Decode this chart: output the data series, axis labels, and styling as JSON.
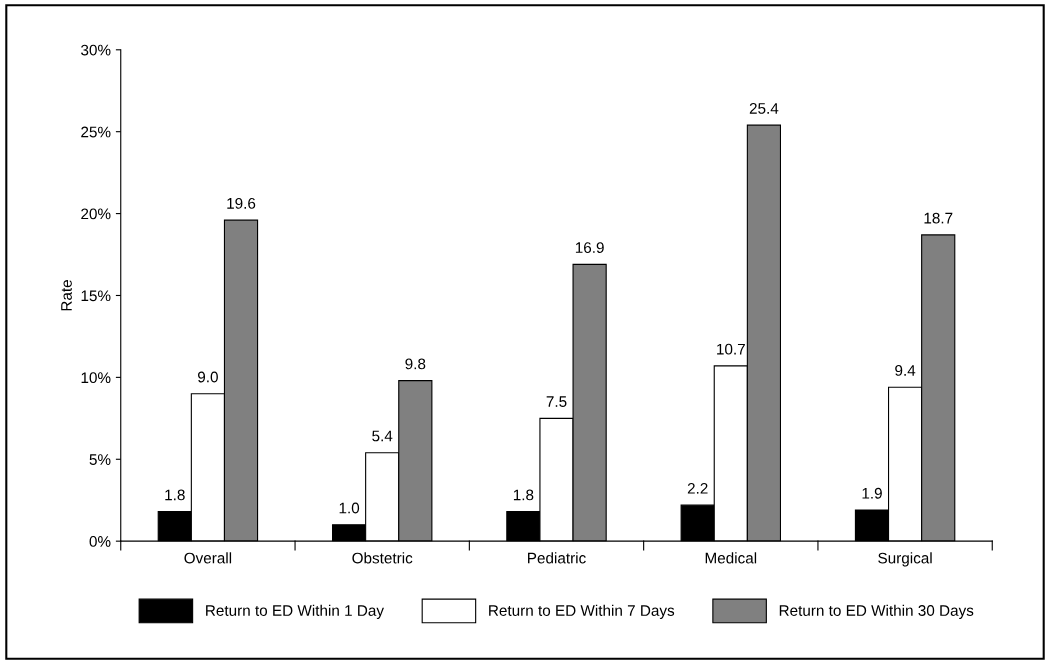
{
  "chart_data": {
    "type": "bar",
    "ylabel": "Rate",
    "categories": [
      "Overall",
      "Obstetric",
      "Pediatric",
      "Medical",
      "Surgical"
    ],
    "series": [
      {
        "name": "Return to ED Within 1 Day",
        "color": "#000000",
        "values": [
          1.8,
          1.0,
          1.8,
          2.2,
          1.9
        ],
        "value_labels": [
          "1.8",
          "1.0",
          "1.8",
          "2.2",
          "1.9"
        ]
      },
      {
        "name": "Return to ED Within 7 Days",
        "color": "#ffffff",
        "values": [
          9.0,
          5.4,
          7.5,
          10.7,
          9.4
        ],
        "value_labels": [
          "9.0",
          "5.4",
          "7.5",
          "10.7",
          "9.4"
        ]
      },
      {
        "name": "Return to ED Within 30 Days",
        "color": "#808080",
        "values": [
          19.6,
          9.8,
          16.9,
          25.4,
          18.7
        ],
        "value_labels": [
          "19.6",
          "9.8",
          "16.9",
          "25.4",
          "18.7"
        ]
      }
    ],
    "ylim": [
      0,
      30
    ],
    "yticks": [
      {
        "value": 0,
        "label": "0%"
      },
      {
        "value": 5,
        "label": "5%"
      },
      {
        "value": 10,
        "label": "10%"
      },
      {
        "value": 15,
        "label": "15%"
      },
      {
        "value": 20,
        "label": "20%"
      },
      {
        "value": 25,
        "label": "25%"
      },
      {
        "value": 30,
        "label": "30%"
      }
    ],
    "grid": false,
    "legend": "bottom"
  }
}
